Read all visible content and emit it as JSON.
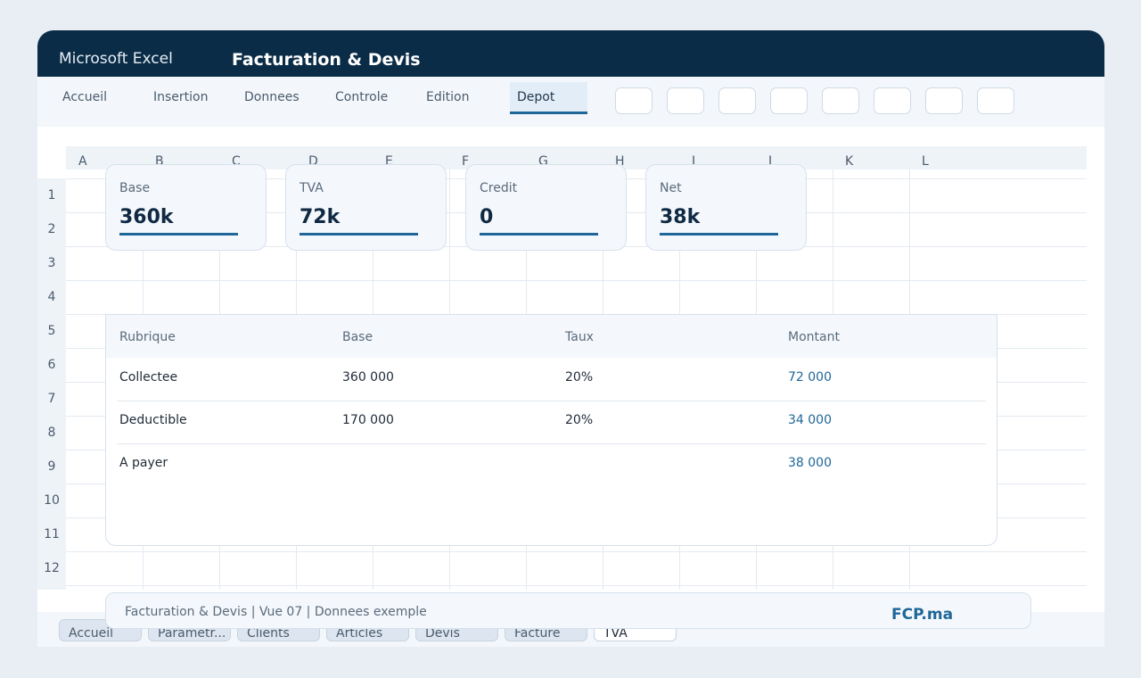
{
  "titlebar": {
    "app_name": "Microsoft Excel",
    "doc_title": "Facturation & Devis"
  },
  "ribbon": {
    "tabs": [
      {
        "label": "Accueil"
      },
      {
        "label": "Insertion"
      },
      {
        "label": "Donnees"
      },
      {
        "label": "Controle"
      },
      {
        "label": "Edition"
      },
      {
        "label": "Depot",
        "active": true
      }
    ],
    "icon_button_count": 8
  },
  "grid": {
    "columns": [
      "A",
      "B",
      "C",
      "D",
      "E",
      "F",
      "G",
      "H",
      "I",
      "J",
      "K",
      "L"
    ],
    "rows": [
      "1",
      "2",
      "3",
      "4",
      "5",
      "6",
      "7",
      "8",
      "9",
      "10",
      "11",
      "12"
    ]
  },
  "kpis": [
    {
      "label": "Base",
      "value": "360k"
    },
    {
      "label": "TVA",
      "value": "72k"
    },
    {
      "label": "Credit",
      "value": "0"
    },
    {
      "label": "Net",
      "value": "38k"
    }
  ],
  "table": {
    "headers": [
      "Rubrique",
      "Base",
      "Taux",
      "Montant"
    ],
    "rows": [
      {
        "rubrique": "Collectee",
        "base": "360 000",
        "taux": "20%",
        "montant": "72 000"
      },
      {
        "rubrique": "Deductible",
        "base": "170 000",
        "taux": "20%",
        "montant": "34 000"
      },
      {
        "rubrique": "A payer",
        "base": "",
        "taux": "",
        "montant": "38 000"
      }
    ]
  },
  "footer": {
    "text": "Facturation & Devis | Vue 07 | Donnees exemple",
    "brand": "FCP.ma"
  },
  "sheet_tabs": [
    {
      "label": "Accueil"
    },
    {
      "label": "Parametr..."
    },
    {
      "label": "Clients"
    },
    {
      "label": "Articles"
    },
    {
      "label": "Devis"
    },
    {
      "label": "Facture"
    },
    {
      "label": "TVA",
      "active": true
    }
  ],
  "colors": {
    "titlebar": "#0b2c47",
    "accent": "#1f6798"
  }
}
